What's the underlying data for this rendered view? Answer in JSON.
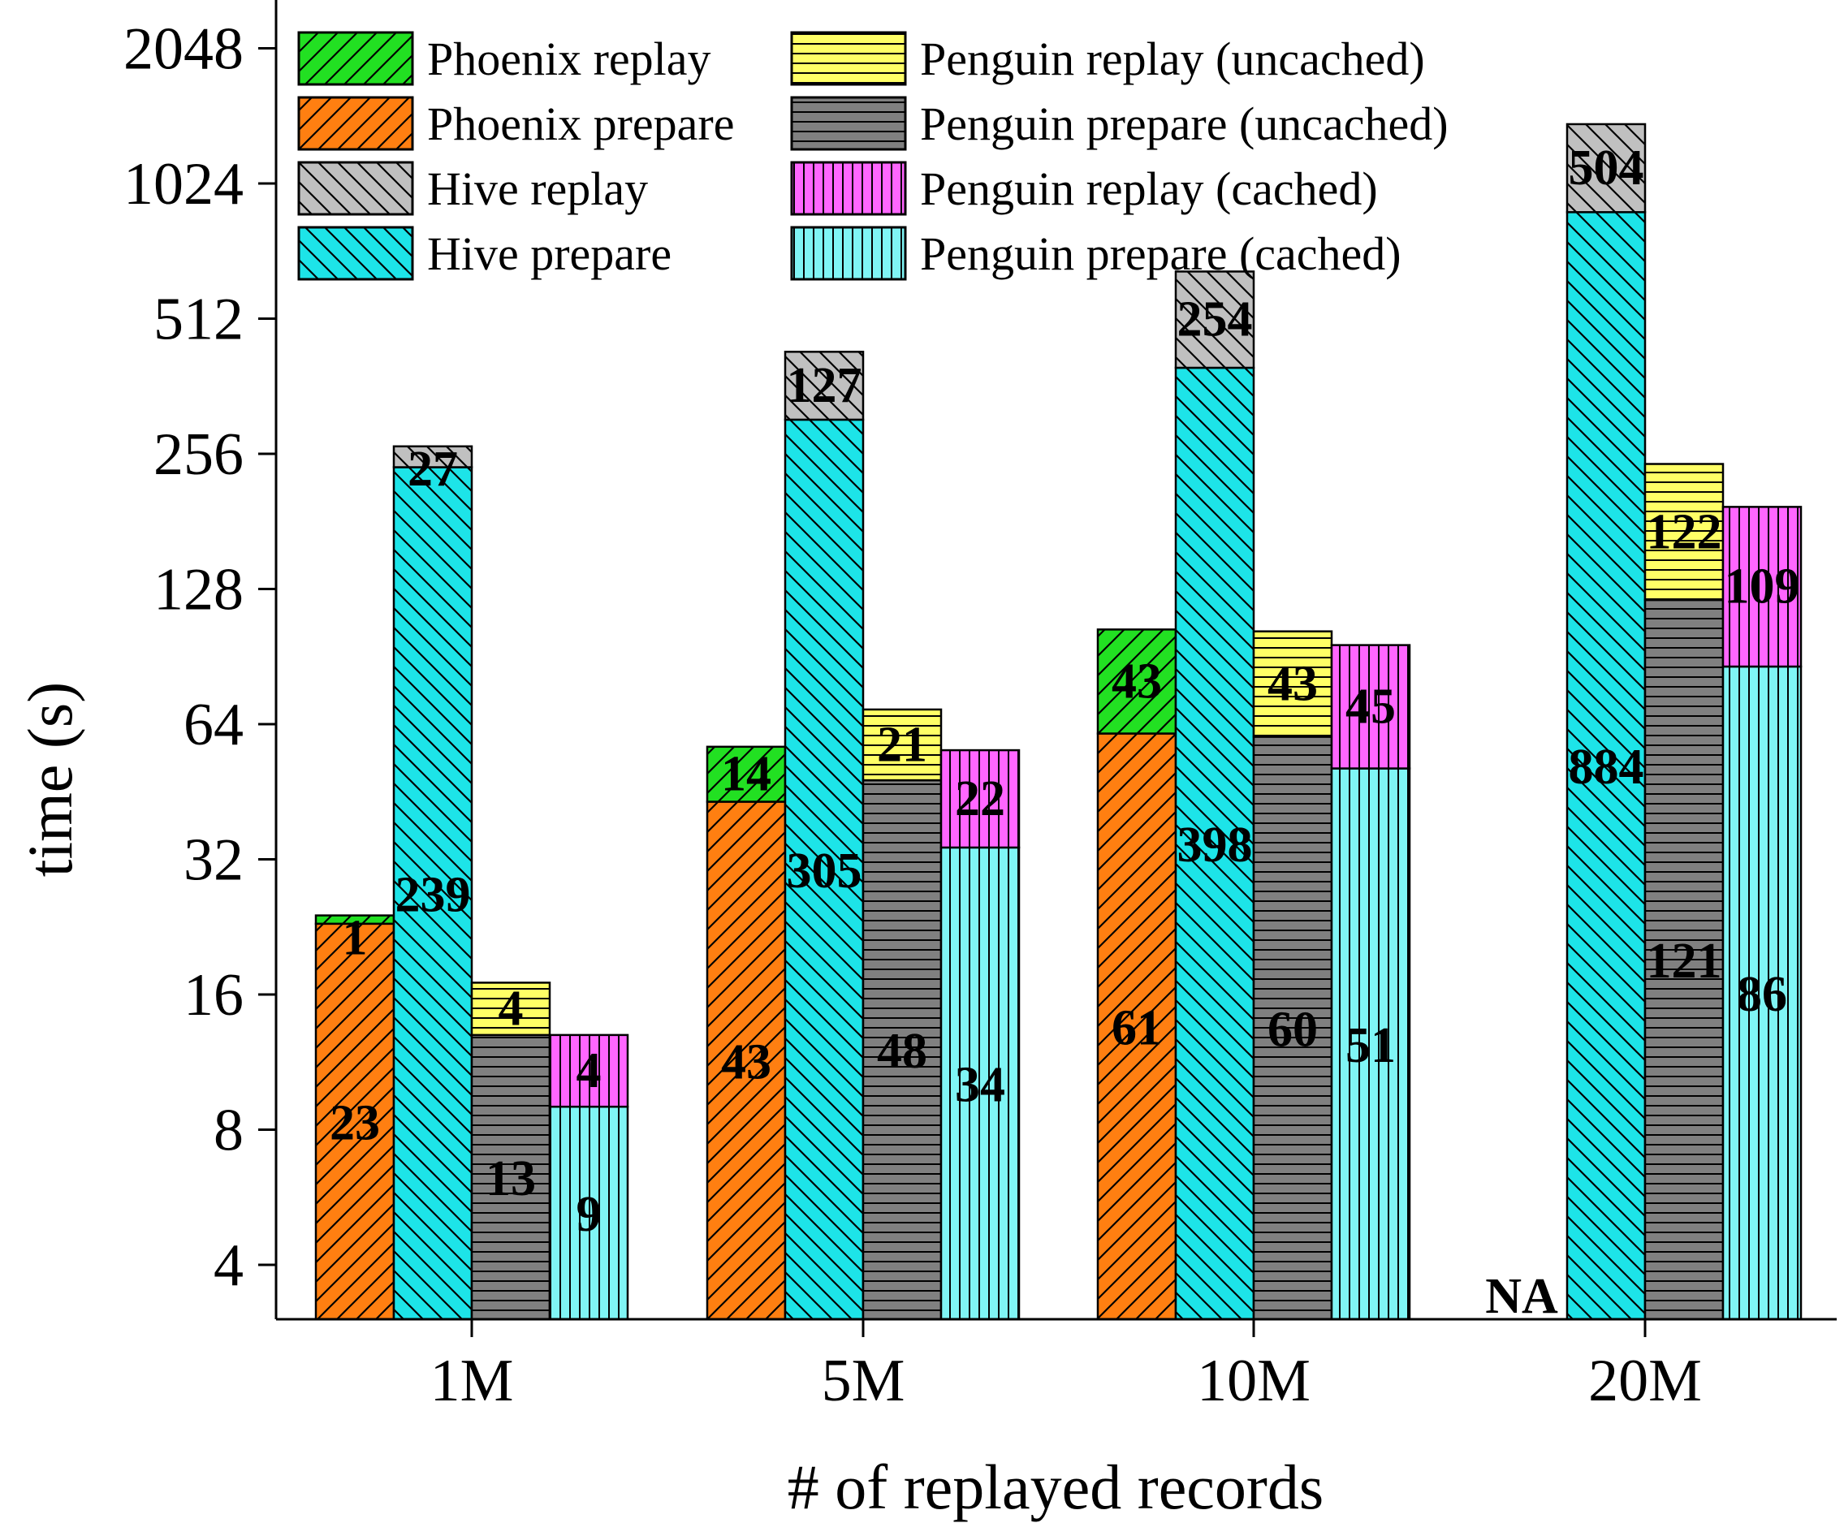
{
  "chart_data": {
    "type": "bar",
    "stacked": true,
    "xlabel": "# of replayed records",
    "ylabel": "time (s)",
    "yscale": "log2",
    "ylim": [
      2.8,
      2048
    ],
    "yticks": [
      4,
      8,
      16,
      32,
      64,
      128,
      256,
      512,
      1024,
      2048
    ],
    "ytick_labels": [
      "4",
      "8",
      "16",
      "32",
      "64",
      "128",
      "256",
      "512",
      "1024",
      "2048"
    ],
    "categories": [
      "1M",
      "5M",
      "10M",
      "20M"
    ],
    "groups": [
      {
        "name": "Phoenix",
        "segments": [
          {
            "series": "Phoenix prepare",
            "values": [
              23,
              43,
              61,
              null
            ]
          },
          {
            "series": "Phoenix replay",
            "values": [
              1,
              14,
              43,
              null
            ]
          }
        ]
      },
      {
        "name": "Hive",
        "segments": [
          {
            "series": "Hive prepare",
            "values": [
              239,
              305,
              398,
              884
            ]
          },
          {
            "series": "Hive replay",
            "values": [
              27,
              127,
              254,
              504
            ]
          }
        ]
      },
      {
        "name": "Penguin (uncached)",
        "segments": [
          {
            "series": "Penguin prepare (uncached)",
            "values": [
              13,
              48,
              60,
              121
            ]
          },
          {
            "series": "Penguin replay (uncached)",
            "values": [
              4,
              21,
              43,
              122
            ]
          }
        ]
      },
      {
        "name": "Penguin (cached)",
        "segments": [
          {
            "series": "Penguin prepare (cached)",
            "values": [
              9,
              34,
              51,
              86
            ]
          },
          {
            "series": "Penguin replay (cached)",
            "values": [
              4,
              22,
              45,
              109
            ]
          }
        ]
      }
    ],
    "legend": {
      "placement": "top-left",
      "entries": [
        {
          "label": "Phoenix replay",
          "color": "#22e022",
          "pattern": "diag-up"
        },
        {
          "label": "Phoenix prepare",
          "color": "#ff7f11",
          "pattern": "diag-up"
        },
        {
          "label": "Hive replay",
          "color": "#c0c0c0",
          "pattern": "diag-down"
        },
        {
          "label": "Hive prepare",
          "color": "#1de4e8",
          "pattern": "diag-down"
        },
        {
          "label": "Penguin replay (uncached)",
          "color": "#ffff66",
          "pattern": "horizontal"
        },
        {
          "label": "Penguin prepare (uncached)",
          "color": "#808080",
          "pattern": "horizontal"
        },
        {
          "label": "Penguin replay (cached)",
          "color": "#ff66ff",
          "pattern": "vertical"
        },
        {
          "label": "Penguin prepare (cached)",
          "color": "#7ff5f5",
          "pattern": "vertical"
        }
      ]
    },
    "annotations": [
      {
        "category": "20M",
        "group": "Phoenix",
        "text": "NA"
      }
    ]
  }
}
